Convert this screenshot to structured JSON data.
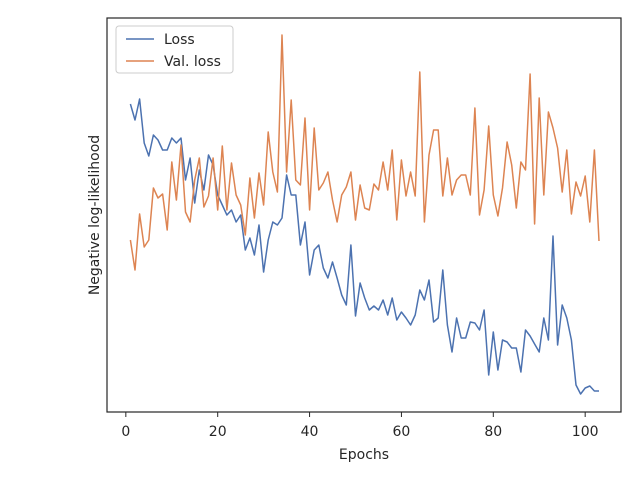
{
  "chart_data": {
    "type": "line",
    "xlabel": "Epochs",
    "ylabel": "Negative log-likelihood",
    "x": [
      1,
      2,
      3,
      4,
      5,
      6,
      7,
      8,
      9,
      10,
      11,
      12,
      13,
      14,
      15,
      16,
      17,
      18,
      19,
      20,
      21,
      22,
      23,
      24,
      25,
      26,
      27,
      28,
      29,
      30,
      31,
      32,
      33,
      34,
      35,
      36,
      37,
      38,
      39,
      40,
      41,
      42,
      43,
      44,
      45,
      46,
      47,
      48,
      49,
      50,
      51,
      52,
      53,
      54,
      55,
      56,
      57,
      58,
      59,
      60,
      61,
      62,
      63,
      64,
      65,
      66,
      67,
      68,
      69,
      70,
      71,
      72,
      73,
      74,
      75,
      76,
      77,
      78,
      79,
      80,
      81,
      82,
      83,
      84,
      85,
      86,
      87,
      88,
      89,
      90,
      91,
      92,
      93,
      94,
      95,
      96,
      97,
      98,
      99,
      100,
      101,
      102,
      103
    ],
    "series": [
      {
        "name": "Loss",
        "color": "#4c72b0",
        "values": [
          308,
          292,
          313,
          269,
          256,
          277,
          272,
          262,
          262,
          274,
          269,
          274,
          232,
          254,
          209,
          242,
          222,
          257,
          247,
          217,
          207,
          197,
          202,
          190,
          197,
          162,
          174,
          157,
          187,
          140,
          172,
          190,
          187,
          194,
          237,
          217,
          217,
          167,
          190,
          137,
          162,
          167,
          144,
          134,
          150,
          134,
          117,
          107,
          167,
          96,
          129,
          114,
          102,
          106,
          102,
          112,
          97,
          114,
          92,
          100,
          94,
          87,
          97,
          122,
          112,
          132,
          90,
          94,
          142,
          87,
          60,
          94,
          74,
          74,
          90,
          89,
          82,
          102,
          37,
          80,
          42,
          72,
          70,
          64,
          64,
          40,
          82,
          76,
          68,
          60,
          94,
          72,
          176,
          67,
          107,
          94,
          72,
          27,
          18,
          24,
          26,
          21,
          21
        ]
      },
      {
        "name": "Val. loss",
        "color": "#dd8452",
        "values": [
          172,
          142,
          198,
          165,
          172,
          224,
          214,
          218,
          182,
          250,
          212,
          267,
          200,
          190,
          232,
          254,
          205,
          216,
          254,
          202,
          266,
          202,
          249,
          217,
          207,
          177,
          234,
          194,
          239,
          207,
          280,
          240,
          220,
          377,
          240,
          312,
          232,
          227,
          294,
          202,
          284,
          222,
          229,
          240,
          212,
          190,
          217,
          225,
          240,
          192,
          227,
          204,
          202,
          228,
          222,
          250,
          222,
          262,
          192,
          252,
          216,
          240,
          216,
          340,
          190,
          257,
          282,
          282,
          216,
          254,
          217,
          232,
          237,
          237,
          217,
          304,
          197,
          222,
          286,
          217,
          196,
          224,
          270,
          247,
          204,
          250,
          242,
          338,
          188,
          314,
          217,
          300,
          284,
          264,
          220,
          262,
          198,
          230,
          216,
          236,
          190,
          262,
          171
        ]
      }
    ],
    "xlim": [
      -4.1,
      107.8
    ],
    "xticks": [
      0,
      20,
      40,
      60,
      80,
      100
    ],
    "ylim": [
      0,
      394
    ],
    "legend": "upper left"
  }
}
